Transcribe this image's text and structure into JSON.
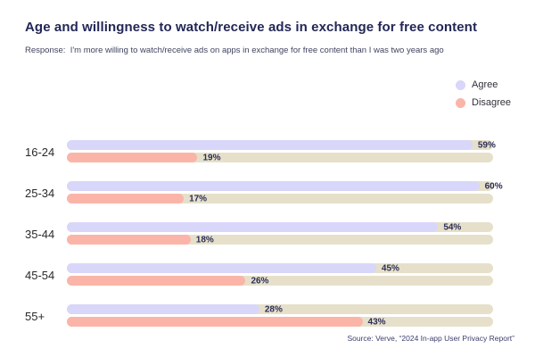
{
  "header": {
    "title": "Age and willingness to watch/receive ads in exchange for free content",
    "subtitle": "Response:  I'm more willing to watch/receive ads on apps in exchange for free content than I was two years ago"
  },
  "legend": {
    "items": [
      {
        "label": "Agree",
        "color": "#d8d6f9"
      },
      {
        "label": "Disagree",
        "color": "#fab5a8"
      }
    ]
  },
  "chart_data": {
    "type": "bar",
    "orientation": "horizontal",
    "title": "Age and willingness to watch/receive ads in exchange for free content",
    "categories": [
      "16-24",
      "25-34",
      "35-44",
      "45-54",
      "55+"
    ],
    "series": [
      {
        "name": "Agree",
        "color": "#d8d6f9",
        "values": [
          59,
          60,
          54,
          45,
          28
        ],
        "labels": [
          "59%",
          "60%",
          "54%",
          "45%",
          "28%"
        ]
      },
      {
        "name": "Disagree",
        "color": "#fab5a8",
        "values": [
          19,
          17,
          18,
          26,
          43
        ],
        "labels": [
          "19%",
          "17%",
          "18%",
          "26%",
          "43%"
        ]
      }
    ],
    "value_suffix": "%",
    "xlim": [
      0,
      62
    ],
    "track_color": "#e6e0cb",
    "grid": false,
    "legend_position": "top-right"
  },
  "footer": {
    "source": "Source: Verve, “2024 In-app User Privacy Report”"
  }
}
